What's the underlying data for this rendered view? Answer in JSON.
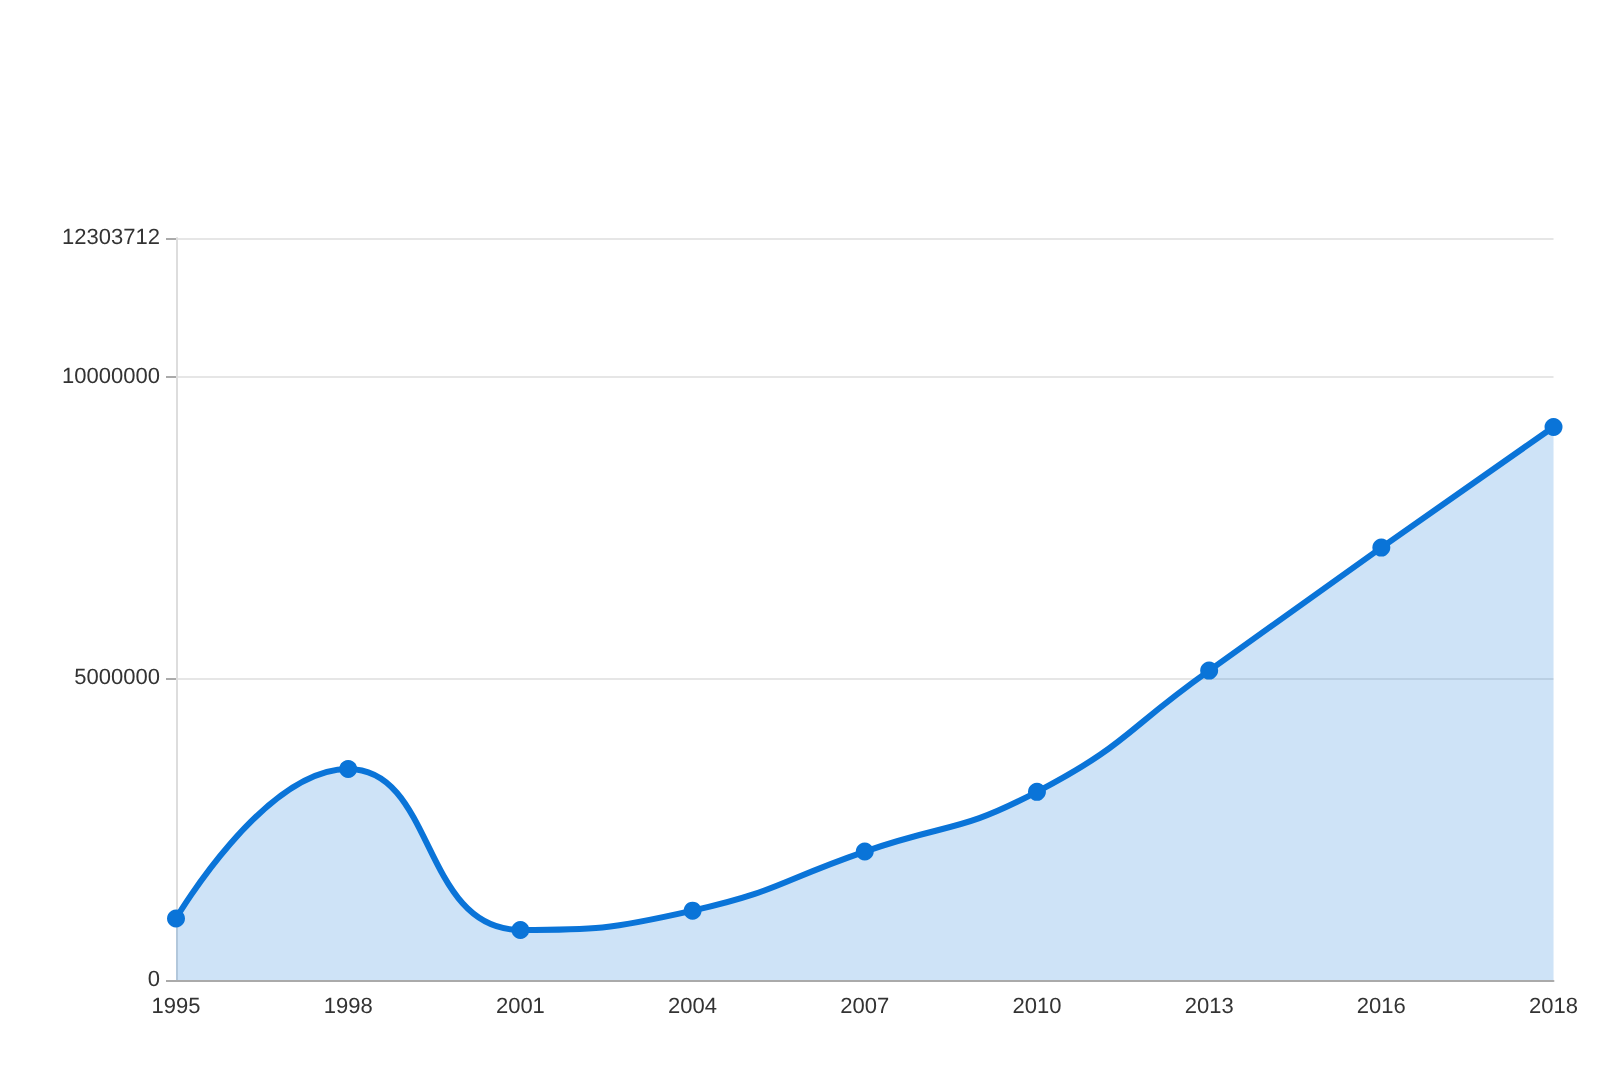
{
  "chart_data": {
    "type": "area",
    "categories": [
      "1995",
      "1998",
      "2001",
      "2004",
      "2007",
      "2010",
      "2013",
      "2016",
      "2018"
    ],
    "series": [
      {
        "color": "#0a74d8",
        "values": [
          1020000,
          3500000,
          830000,
          1150000,
          2130000,
          3120000,
          5130000,
          7170000,
          9170000
        ]
      }
    ],
    "ylim": [
      0,
      12303712
    ],
    "yticks": [
      0,
      5000000,
      10000000,
      12303712
    ],
    "grid": "y",
    "marker": "circle"
  }
}
